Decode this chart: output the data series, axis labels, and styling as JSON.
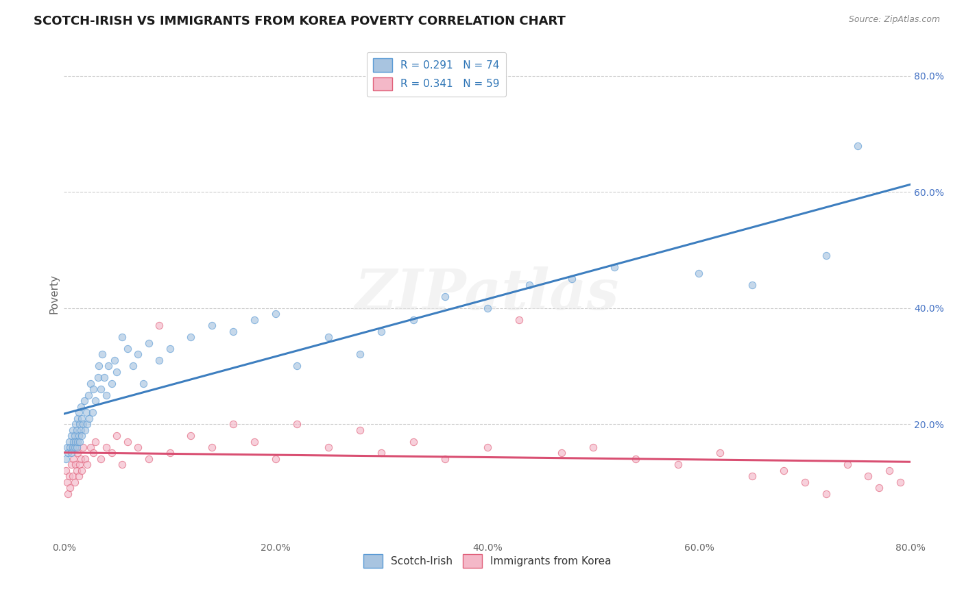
{
  "title": "SCOTCH-IRISH VS IMMIGRANTS FROM KOREA POVERTY CORRELATION CHART",
  "source": "Source: ZipAtlas.com",
  "ylabel": "Poverty",
  "xlim": [
    0.0,
    0.8
  ],
  "ylim": [
    0.0,
    0.85
  ],
  "xtick_labels": [
    "0.0%",
    "20.0%",
    "40.0%",
    "60.0%",
    "80.0%"
  ],
  "xtick_vals": [
    0.0,
    0.2,
    0.4,
    0.6,
    0.8
  ],
  "ytick_labels": [
    "20.0%",
    "40.0%",
    "60.0%",
    "80.0%"
  ],
  "ytick_vals": [
    0.2,
    0.4,
    0.6,
    0.8
  ],
  "series1_name": "Scotch-Irish",
  "series1_color": "#a8c4e0",
  "series1_edge_color": "#5b9bd5",
  "series1_line_color": "#3d7ebf",
  "series1_R": 0.291,
  "series1_N": 74,
  "series2_name": "Immigrants from Korea",
  "series2_color": "#f4b8c8",
  "series2_edge_color": "#e0607a",
  "series2_line_color": "#d94f72",
  "series2_R": 0.341,
  "series2_N": 59,
  "legend_text_color": "#2e75b6",
  "watermark": "ZIPatlas",
  "background_color": "#ffffff",
  "grid_color": "#cccccc",
  "title_fontsize": 13,
  "scatter_alpha": 0.65,
  "scatter_size": 55,
  "series1_x": [
    0.002,
    0.003,
    0.004,
    0.005,
    0.006,
    0.007,
    0.007,
    0.008,
    0.008,
    0.009,
    0.01,
    0.01,
    0.011,
    0.011,
    0.012,
    0.012,
    0.013,
    0.013,
    0.014,
    0.014,
    0.015,
    0.015,
    0.016,
    0.016,
    0.017,
    0.017,
    0.018,
    0.019,
    0.02,
    0.021,
    0.022,
    0.023,
    0.024,
    0.025,
    0.027,
    0.028,
    0.03,
    0.032,
    0.033,
    0.035,
    0.036,
    0.038,
    0.04,
    0.042,
    0.045,
    0.048,
    0.05,
    0.055,
    0.06,
    0.065,
    0.07,
    0.075,
    0.08,
    0.09,
    0.1,
    0.12,
    0.14,
    0.16,
    0.18,
    0.2,
    0.22,
    0.25,
    0.28,
    0.3,
    0.33,
    0.36,
    0.4,
    0.44,
    0.48,
    0.52,
    0.6,
    0.65,
    0.72,
    0.75
  ],
  "series1_y": [
    0.14,
    0.16,
    0.15,
    0.17,
    0.16,
    0.15,
    0.18,
    0.16,
    0.19,
    0.17,
    0.16,
    0.18,
    0.17,
    0.2,
    0.16,
    0.19,
    0.17,
    0.21,
    0.18,
    0.22,
    0.17,
    0.2,
    0.19,
    0.23,
    0.18,
    0.21,
    0.2,
    0.24,
    0.19,
    0.22,
    0.2,
    0.25,
    0.21,
    0.27,
    0.22,
    0.26,
    0.24,
    0.28,
    0.3,
    0.26,
    0.32,
    0.28,
    0.25,
    0.3,
    0.27,
    0.31,
    0.29,
    0.35,
    0.33,
    0.3,
    0.32,
    0.27,
    0.34,
    0.31,
    0.33,
    0.35,
    0.37,
    0.36,
    0.38,
    0.39,
    0.3,
    0.35,
    0.32,
    0.36,
    0.38,
    0.42,
    0.4,
    0.44,
    0.45,
    0.47,
    0.46,
    0.44,
    0.49,
    0.68
  ],
  "series2_x": [
    0.002,
    0.003,
    0.004,
    0.005,
    0.006,
    0.007,
    0.008,
    0.009,
    0.01,
    0.011,
    0.012,
    0.013,
    0.014,
    0.015,
    0.016,
    0.017,
    0.018,
    0.02,
    0.022,
    0.025,
    0.028,
    0.03,
    0.035,
    0.04,
    0.045,
    0.05,
    0.055,
    0.06,
    0.07,
    0.08,
    0.09,
    0.1,
    0.12,
    0.14,
    0.16,
    0.18,
    0.2,
    0.22,
    0.25,
    0.28,
    0.3,
    0.33,
    0.36,
    0.4,
    0.43,
    0.47,
    0.5,
    0.54,
    0.58,
    0.62,
    0.65,
    0.68,
    0.7,
    0.72,
    0.74,
    0.76,
    0.77,
    0.78,
    0.79
  ],
  "series2_y": [
    0.12,
    0.1,
    0.08,
    0.11,
    0.09,
    0.13,
    0.11,
    0.14,
    0.1,
    0.13,
    0.12,
    0.15,
    0.11,
    0.13,
    0.14,
    0.12,
    0.16,
    0.14,
    0.13,
    0.16,
    0.15,
    0.17,
    0.14,
    0.16,
    0.15,
    0.18,
    0.13,
    0.17,
    0.16,
    0.14,
    0.37,
    0.15,
    0.18,
    0.16,
    0.2,
    0.17,
    0.14,
    0.2,
    0.16,
    0.19,
    0.15,
    0.17,
    0.14,
    0.16,
    0.38,
    0.15,
    0.16,
    0.14,
    0.13,
    0.15,
    0.11,
    0.12,
    0.1,
    0.08,
    0.13,
    0.11,
    0.09,
    0.12,
    0.1
  ]
}
